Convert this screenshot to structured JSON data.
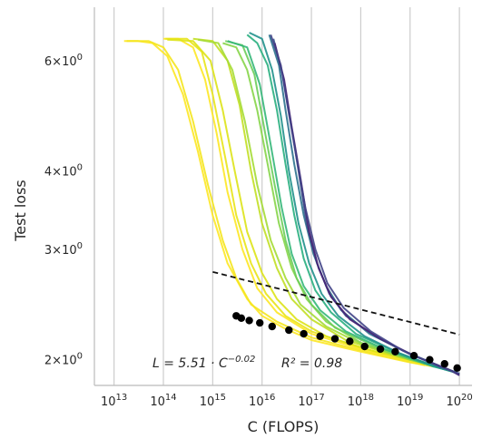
{
  "chart_data": {
    "type": "line",
    "title": "",
    "xlabel": "C (FLOPS)",
    "ylabel": "Test loss",
    "x_scale": "log",
    "y_scale": "log",
    "xlim": [
      4000000000000.0,
      1.8e+20
    ],
    "ylim": [
      1.82,
      7.3
    ],
    "grid": "vertical",
    "x_ticks": [
      10000000000000.0,
      100000000000000.0,
      1000000000000000.0,
      1e+16,
      1e+17,
      1e+18,
      1e+19,
      1e+20
    ],
    "x_tick_labels": [
      {
        "base": "10",
        "exp": "13"
      },
      {
        "base": "10",
        "exp": "14"
      },
      {
        "base": "10",
        "exp": "15"
      },
      {
        "base": "10",
        "exp": "16"
      },
      {
        "base": "10",
        "exp": "17"
      },
      {
        "base": "10",
        "exp": "18"
      },
      {
        "base": "10",
        "exp": "19"
      },
      {
        "base": "10",
        "exp": "20"
      }
    ],
    "y_ticks": [
      2,
      3,
      4,
      6
    ],
    "y_tick_labels": [
      {
        "coef": "2×10",
        "exp": "0"
      },
      {
        "coef": "3×10",
        "exp": "0"
      },
      {
        "coef": "4×10",
        "exp": "0"
      },
      {
        "coef": "6×10",
        "exp": "0"
      }
    ],
    "colormap": [
      "#440154",
      "#3b528b",
      "#21918c",
      "#5ec962",
      "#fde725"
    ],
    "series": [
      {
        "color": "#fde725",
        "points": [
          [
            16000000000000.0,
            6.45
          ],
          [
            30000000000000.0,
            6.45
          ],
          [
            60000000000000.0,
            6.4
          ],
          [
            120000000000000.0,
            6.1
          ],
          [
            250000000000000.0,
            5.3
          ],
          [
            500000000000000.0,
            4.3
          ],
          [
            1000000000000000.0,
            3.4
          ],
          [
            2000000000000000.0,
            2.85
          ],
          [
            5000000000000000.0,
            2.5
          ],
          [
            1e+16,
            2.35
          ],
          [
            3e+16,
            2.24
          ],
          [
            1e+17,
            2.15
          ],
          [
            1e+18,
            2.06
          ],
          [
            1e+19,
            1.98
          ],
          [
            3e+19,
            1.95
          ]
        ]
      },
      {
        "color": "#f4e61e",
        "points": [
          [
            18000000000000.0,
            6.45
          ],
          [
            50000000000000.0,
            6.45
          ],
          [
            100000000000000.0,
            6.3
          ],
          [
            200000000000000.0,
            5.8
          ],
          [
            400000000000000.0,
            4.8
          ],
          [
            800000000000000.0,
            3.8
          ],
          [
            1600000000000000.0,
            3.1
          ],
          [
            3000000000000000.0,
            2.7
          ],
          [
            6000000000000000.0,
            2.45
          ],
          [
            2e+16,
            2.3
          ],
          [
            1e+17,
            2.17
          ],
          [
            1e+18,
            2.07
          ],
          [
            2e+19,
            1.96
          ]
        ]
      },
      {
        "color": "#fde725",
        "points": [
          [
            100000000000000.0,
            6.5
          ],
          [
            200000000000000.0,
            6.5
          ],
          [
            400000000000000.0,
            6.3
          ],
          [
            700000000000000.0,
            5.6
          ],
          [
            1200000000000000.0,
            4.6
          ],
          [
            2000000000000000.0,
            3.7
          ],
          [
            4000000000000000.0,
            3.0
          ],
          [
            8000000000000000.0,
            2.6
          ],
          [
            2e+16,
            2.38
          ],
          [
            1e+17,
            2.2
          ],
          [
            1e+18,
            2.08
          ],
          [
            2e+19,
            1.97
          ]
        ]
      },
      {
        "color": "#e8e419",
        "points": [
          [
            110000000000000.0,
            6.5
          ],
          [
            300000000000000.0,
            6.5
          ],
          [
            600000000000000.0,
            6.2
          ],
          [
            1000000000000000.0,
            5.3
          ],
          [
            1800000000000000.0,
            4.2
          ],
          [
            3000000000000000.0,
            3.4
          ],
          [
            6000000000000000.0,
            2.85
          ],
          [
            1.2e+16,
            2.55
          ],
          [
            3e+16,
            2.35
          ],
          [
            1e+17,
            2.22
          ],
          [
            1e+18,
            2.09
          ],
          [
            2e+19,
            1.97
          ]
        ]
      },
      {
        "color": "#dde318",
        "points": [
          [
            120000000000000.0,
            6.48
          ],
          [
            400000000000000.0,
            6.45
          ],
          [
            900000000000000.0,
            6.0
          ],
          [
            1600000000000000.0,
            5.0
          ],
          [
            2800000000000000.0,
            4.0
          ],
          [
            5000000000000000.0,
            3.2
          ],
          [
            1e+16,
            2.75
          ],
          [
            2e+16,
            2.5
          ],
          [
            5e+16,
            2.32
          ],
          [
            2e+17,
            2.18
          ],
          [
            2e+18,
            2.06
          ],
          [
            3e+19,
            1.96
          ]
        ]
      },
      {
        "color": "#c2df23",
        "points": [
          [
            400000000000000.0,
            6.5
          ],
          [
            1000000000000000.0,
            6.45
          ],
          [
            2000000000000000.0,
            6.0
          ],
          [
            3500000000000000.0,
            5.1
          ],
          [
            6000000000000000.0,
            4.0
          ],
          [
            1e+16,
            3.3
          ],
          [
            2e+16,
            2.8
          ],
          [
            4e+16,
            2.5
          ],
          [
            1e+17,
            2.32
          ],
          [
            5e+17,
            2.15
          ],
          [
            5e+18,
            2.03
          ],
          [
            5e+19,
            1.94
          ]
        ]
      },
      {
        "color": "#a5db36",
        "points": [
          [
            500000000000000.0,
            6.48
          ],
          [
            1300000000000000.0,
            6.4
          ],
          [
            2500000000000000.0,
            5.8
          ],
          [
            4500000000000000.0,
            4.8
          ],
          [
            8000000000000000.0,
            3.8
          ],
          [
            1.5e+16,
            3.1
          ],
          [
            3e+16,
            2.7
          ],
          [
            6e+16,
            2.45
          ],
          [
            2e+17,
            2.26
          ],
          [
            1e+18,
            2.12
          ],
          [
            1e+19,
            2.0
          ],
          [
            6e+19,
            1.93
          ]
        ]
      },
      {
        "color": "#86d549",
        "points": [
          [
            1600000000000000.0,
            6.4
          ],
          [
            3000000000000000.0,
            6.3
          ],
          [
            5000000000000000.0,
            5.8
          ],
          [
            8000000000000000.0,
            5.0
          ],
          [
            1.3e+16,
            4.1
          ],
          [
            2.2e+16,
            3.3
          ],
          [
            4e+16,
            2.8
          ],
          [
            8e+16,
            2.5
          ],
          [
            2e+17,
            2.3
          ],
          [
            1e+18,
            2.13
          ],
          [
            1e+19,
            2.0
          ],
          [
            6e+19,
            1.93
          ]
        ]
      },
      {
        "color": "#6ccd5a",
        "points": [
          [
            1800000000000000.0,
            6.45
          ],
          [
            4000000000000000.0,
            6.35
          ],
          [
            7000000000000000.0,
            5.7
          ],
          [
            1.1e+16,
            4.7
          ],
          [
            1.8e+16,
            3.8
          ],
          [
            3e+16,
            3.1
          ],
          [
            5e+16,
            2.7
          ],
          [
            1e+17,
            2.45
          ],
          [
            3e+17,
            2.25
          ],
          [
            2e+18,
            2.1
          ],
          [
            2e+19,
            1.98
          ],
          [
            7e+19,
            1.92
          ]
        ]
      },
      {
        "color": "#35b779",
        "points": [
          [
            2000000000000000.0,
            6.45
          ],
          [
            5000000000000000.0,
            6.3
          ],
          [
            9000000000000000.0,
            5.5
          ],
          [
            1.5e+16,
            4.4
          ],
          [
            2.5e+16,
            3.5
          ],
          [
            4e+16,
            2.95
          ],
          [
            7e+16,
            2.62
          ],
          [
            1.5e+17,
            2.4
          ],
          [
            5e+17,
            2.22
          ],
          [
            3e+18,
            2.08
          ],
          [
            2e+19,
            1.97
          ],
          [
            8e+19,
            1.91
          ]
        ]
      },
      {
        "color": "#29af7f",
        "points": [
          [
            5000000000000000.0,
            6.6
          ],
          [
            8000000000000000.0,
            6.4
          ],
          [
            1.3e+16,
            5.9
          ],
          [
            2e+16,
            5.0
          ],
          [
            3e+16,
            4.1
          ],
          [
            4.5e+16,
            3.4
          ],
          [
            7e+16,
            2.9
          ],
          [
            1.2e+17,
            2.58
          ],
          [
            2.5e+17,
            2.38
          ],
          [
            8e+17,
            2.2
          ],
          [
            5e+18,
            2.06
          ],
          [
            3e+19,
            1.95
          ],
          [
            9e+19,
            1.91
          ]
        ]
      },
      {
        "color": "#21918c",
        "points": [
          [
            5500000000000000.0,
            6.65
          ],
          [
            1e+16,
            6.5
          ],
          [
            1.6e+16,
            5.8
          ],
          [
            2.4e+16,
            4.9
          ],
          [
            3.5e+16,
            4.0
          ],
          [
            5.5e+16,
            3.3
          ],
          [
            9e+16,
            2.85
          ],
          [
            1.6e+17,
            2.55
          ],
          [
            3.5e+17,
            2.35
          ],
          [
            1.2e+18,
            2.18
          ],
          [
            6e+18,
            2.05
          ],
          [
            4e+19,
            1.94
          ],
          [
            1e+20,
            1.9
          ]
        ]
      },
      {
        "color": "#2c728e",
        "points": [
          [
            1.4e+16,
            6.6
          ],
          [
            2.2e+16,
            5.9
          ],
          [
            3e+16,
            5.0
          ],
          [
            4.5e+16,
            4.1
          ],
          [
            7e+16,
            3.4
          ],
          [
            1.1e+17,
            2.95
          ],
          [
            2e+17,
            2.62
          ],
          [
            4e+17,
            2.4
          ],
          [
            1.5e+18,
            2.2
          ],
          [
            8e+18,
            2.06
          ],
          [
            5e+19,
            1.94
          ],
          [
            1e+20,
            1.9
          ]
        ]
      },
      {
        "color": "#3b528b",
        "points": [
          [
            1.7e+16,
            6.5
          ],
          [
            2.6e+16,
            5.7
          ],
          [
            3.8e+16,
            4.8
          ],
          [
            5.5e+16,
            4.0
          ],
          [
            8e+16,
            3.3
          ],
          [
            1.3e+17,
            2.85
          ],
          [
            2.3e+17,
            2.55
          ],
          [
            5e+17,
            2.35
          ],
          [
            2e+18,
            2.18
          ],
          [
            1e+19,
            2.04
          ],
          [
            6e+19,
            1.93
          ],
          [
            1e+20,
            1.89
          ]
        ]
      },
      {
        "color": "#482475",
        "points": [
          [
            1.8e+16,
            6.4
          ],
          [
            2.8e+16,
            5.6
          ],
          [
            4e+16,
            4.7
          ],
          [
            6e+16,
            3.9
          ],
          [
            9e+16,
            3.2
          ],
          [
            1.4e+17,
            2.8
          ],
          [
            2.5e+17,
            2.52
          ],
          [
            6e+17,
            2.32
          ],
          [
            2.5e+18,
            2.16
          ],
          [
            1.2e+19,
            2.03
          ],
          [
            7e+19,
            1.92
          ],
          [
            1e+20,
            1.89
          ]
        ]
      },
      {
        "color": "#414487",
        "points": [
          [
            1.5e+16,
            6.6
          ],
          [
            2.4e+16,
            5.9
          ],
          [
            3.4e+16,
            5.0
          ],
          [
            5e+16,
            4.2
          ],
          [
            7.5e+16,
            3.5
          ],
          [
            1.2e+17,
            3.0
          ],
          [
            2.1e+17,
            2.65
          ],
          [
            4.5e+17,
            2.42
          ],
          [
            1.6e+18,
            2.22
          ],
          [
            7e+18,
            2.07
          ],
          [
            4e+19,
            1.95
          ],
          [
            1e+20,
            1.9
          ]
        ]
      }
    ],
    "frontier_points": [
      [
        3000000000000000.0,
        2.35
      ],
      [
        3800000000000000.0,
        2.33
      ],
      [
        5500000000000000.0,
        2.31
      ],
      [
        9000000000000000.0,
        2.29
      ],
      [
        1.6e+16,
        2.26
      ],
      [
        3.5e+16,
        2.23
      ],
      [
        7e+16,
        2.2
      ],
      [
        1.5e+17,
        2.18
      ],
      [
        3e+17,
        2.16
      ],
      [
        6e+17,
        2.14
      ],
      [
        1.2e+18,
        2.1
      ],
      [
        2.5e+18,
        2.08
      ],
      [
        5e+18,
        2.06
      ],
      [
        1.2e+19,
        2.03
      ],
      [
        2.5e+19,
        2.0
      ],
      [
        5e+19,
        1.97
      ],
      [
        9e+19,
        1.94
      ]
    ],
    "fit": {
      "A": 5.51,
      "alpha": 0.02,
      "x_range": [
        1000000000000000.0,
        1e+20
      ],
      "label": "L = 5.51 · C^{−0.02}",
      "r2_label": "R² = 0.98"
    }
  }
}
